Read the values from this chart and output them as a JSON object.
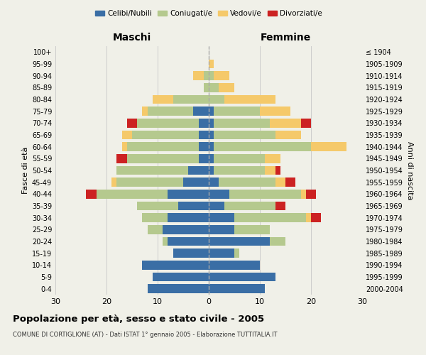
{
  "age_groups": [
    "0-4",
    "5-9",
    "10-14",
    "15-19",
    "20-24",
    "25-29",
    "30-34",
    "35-39",
    "40-44",
    "45-49",
    "50-54",
    "55-59",
    "60-64",
    "65-69",
    "70-74",
    "75-79",
    "80-84",
    "85-89",
    "90-94",
    "95-99",
    "100+"
  ],
  "birth_years": [
    "2000-2004",
    "1995-1999",
    "1990-1994",
    "1985-1989",
    "1980-1984",
    "1975-1979",
    "1970-1974",
    "1965-1969",
    "1960-1964",
    "1955-1959",
    "1950-1954",
    "1945-1949",
    "1940-1944",
    "1935-1939",
    "1930-1934",
    "1925-1929",
    "1920-1924",
    "1915-1919",
    "1910-1914",
    "1905-1909",
    "≤ 1904"
  ],
  "colors": {
    "celibi": "#3a6ea5",
    "coniugati": "#b5c98e",
    "vedovi": "#f5c96a",
    "divorziati": "#cc2222"
  },
  "maschi": {
    "celibi": [
      12,
      11,
      13,
      7,
      8,
      9,
      8,
      6,
      8,
      5,
      4,
      2,
      2,
      2,
      2,
      3,
      0,
      0,
      0,
      0,
      0
    ],
    "coniugati": [
      0,
      0,
      0,
      0,
      1,
      3,
      5,
      8,
      14,
      13,
      14,
      14,
      14,
      13,
      12,
      9,
      7,
      1,
      1,
      0,
      0
    ],
    "vedovi": [
      0,
      0,
      0,
      0,
      0,
      0,
      0,
      0,
      0,
      1,
      0,
      0,
      1,
      2,
      0,
      1,
      4,
      0,
      2,
      0,
      0
    ],
    "divorziati": [
      0,
      0,
      0,
      0,
      0,
      0,
      0,
      0,
      2,
      0,
      0,
      2,
      0,
      0,
      2,
      0,
      0,
      0,
      0,
      0,
      0
    ]
  },
  "femmine": {
    "nubili": [
      11,
      13,
      10,
      5,
      12,
      5,
      5,
      3,
      4,
      2,
      1,
      1,
      1,
      1,
      1,
      1,
      0,
      0,
      0,
      0,
      0
    ],
    "coniugate": [
      0,
      0,
      0,
      1,
      3,
      7,
      14,
      10,
      14,
      11,
      10,
      10,
      19,
      12,
      11,
      9,
      3,
      2,
      1,
      0,
      0
    ],
    "vedove": [
      0,
      0,
      0,
      0,
      0,
      0,
      1,
      0,
      1,
      2,
      2,
      3,
      7,
      5,
      6,
      6,
      10,
      3,
      3,
      1,
      0
    ],
    "divorziate": [
      0,
      0,
      0,
      0,
      0,
      0,
      2,
      2,
      2,
      2,
      1,
      0,
      0,
      0,
      2,
      0,
      0,
      0,
      0,
      0,
      0
    ]
  },
  "title": "Popolazione per età, sesso e stato civile - 2005",
  "subtitle": "COMUNE DI CORTIGLIONE (AT) - Dati ISTAT 1° gennaio 2005 - Elaborazione TUTTITALIA.IT",
  "xlabel_left": "Maschi",
  "xlabel_right": "Femmine",
  "ylabel_left": "Fasce di età",
  "ylabel_right": "Anni di nascita",
  "xlim": 30,
  "bg_color": "#f0f0e8",
  "grid_color": "#cccccc"
}
